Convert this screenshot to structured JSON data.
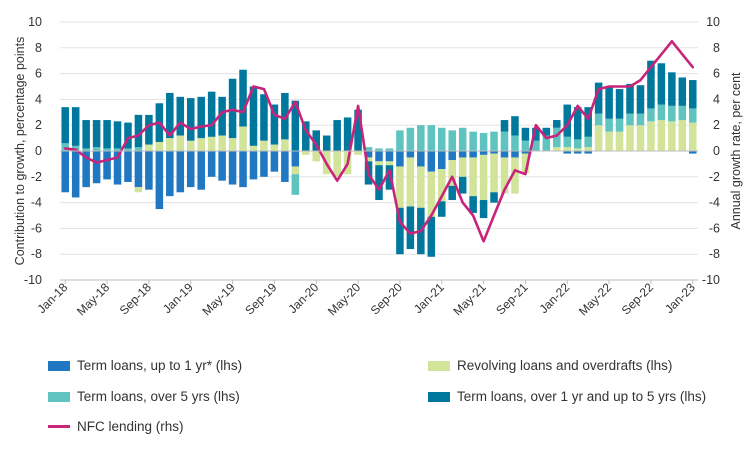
{
  "chart_data": {
    "type": "bar",
    "ylabel": "Contribution to growth, percentage points",
    "y2label": "Annual growth rate, per cent",
    "ylim": [
      -10,
      10
    ],
    "y2lim": [
      -10,
      10
    ],
    "yticks": [
      -10,
      -8,
      -6,
      -4,
      -2,
      0,
      2,
      4,
      6,
      8,
      10
    ],
    "x_tick_labels": [
      "Jan-18",
      "May-18",
      "Sep-18",
      "Jan-19",
      "May-19",
      "Sep-19",
      "Jan-20",
      "May-20",
      "Sep-20",
      "Jan-21",
      "May-21",
      "Sep-21",
      "Jan-22",
      "May-22",
      "Sep-22",
      "Jan-23"
    ],
    "categories": [
      "Jan-18",
      "Feb-18",
      "Mar-18",
      "Apr-18",
      "May-18",
      "Jun-18",
      "Jul-18",
      "Aug-18",
      "Sep-18",
      "Oct-18",
      "Nov-18",
      "Dec-18",
      "Jan-19",
      "Feb-19",
      "Mar-19",
      "Apr-19",
      "May-19",
      "Jun-19",
      "Jul-19",
      "Aug-19",
      "Sep-19",
      "Oct-19",
      "Nov-19",
      "Dec-19",
      "Jan-20",
      "Feb-20",
      "Mar-20",
      "Apr-20",
      "May-20",
      "Jun-20",
      "Jul-20",
      "Aug-20",
      "Sep-20",
      "Oct-20",
      "Nov-20",
      "Dec-20",
      "Jan-21",
      "Feb-21",
      "Mar-21",
      "Apr-21",
      "May-21",
      "Jun-21",
      "Jul-21",
      "Aug-21",
      "Sep-21",
      "Oct-21",
      "Nov-21",
      "Dec-21",
      "Jan-22",
      "Feb-22",
      "Mar-22",
      "Apr-22",
      "May-22",
      "Jun-22",
      "Jul-22",
      "Aug-22",
      "Sep-22",
      "Oct-22",
      "Nov-22",
      "Dec-22",
      "Jan-23"
    ],
    "legend_position": "bottom",
    "series": [
      {
        "name": "Term loans, up to 1 yr* (lhs)",
        "kind": "bar",
        "color": "#1f78c1",
        "values": [
          -3.2,
          -3.6,
          -2.8,
          -2.5,
          -2.2,
          -2.6,
          -2.4,
          -2.8,
          -3.0,
          -4.5,
          -3.5,
          -3.2,
          -2.8,
          -3.0,
          -2.0,
          -2.3,
          -2.6,
          -2.8,
          -2.2,
          -2.0,
          -1.6,
          -2.4,
          -1.2,
          0,
          0,
          0,
          0,
          0,
          0,
          -0.5,
          -0.8,
          -0.8,
          -1.2,
          -0.5,
          -1.2,
          -1.6,
          -1.4,
          -0.7,
          -0.5,
          -0.5,
          -0.3,
          -0.2,
          -0.5,
          -0.5,
          -0.2,
          0,
          0,
          0,
          -0.2,
          -0.2,
          -0.2,
          0,
          0,
          0,
          0,
          0,
          0,
          0,
          0,
          0,
          -0.2
        ]
      },
      {
        "name": "Revolving loans and overdrafts (lhs)",
        "kind": "bar",
        "color": "#d2e39a",
        "values": [
          0,
          0,
          0,
          0,
          0,
          0,
          0,
          -0.4,
          0.5,
          0.7,
          1.0,
          1.2,
          0.8,
          1.0,
          1.1,
          1.2,
          1.0,
          1.9,
          0.4,
          0.8,
          0.5,
          0.9,
          -0.6,
          -0.3,
          -0.8,
          -1.8,
          -2.0,
          -1.8,
          -0.3,
          -0.3,
          -0.3,
          -0.3,
          -3.2,
          -3.8,
          -3.2,
          -3.5,
          -2.5,
          -2.0,
          -1.5,
          -3.0,
          -3.5,
          -3.0,
          -2.8,
          -2.8,
          -1.5,
          0,
          0,
          0.3,
          0.3,
          0.2,
          0.3,
          2.0,
          1.5,
          1.5,
          2.0,
          2.0,
          2.3,
          2.4,
          2.3,
          2.4,
          2.2
        ]
      },
      {
        "name": "Term loans, over 5 yrs (lhs)",
        "kind": "bar",
        "color": "#5fc4c0",
        "values": [
          0.6,
          0.4,
          0.2,
          0.3,
          0.2,
          0.2,
          0.2,
          0.3,
          0,
          0,
          0,
          0,
          0,
          0,
          0,
          0,
          0,
          0,
          0,
          0,
          0,
          0,
          -1.6,
          0,
          0,
          0,
          0,
          0,
          0,
          0.3,
          0.2,
          0.2,
          1.6,
          1.8,
          2.0,
          2.0,
          1.8,
          1.6,
          1.8,
          1.5,
          1.4,
          1.5,
          1.5,
          1.2,
          0.8,
          0.8,
          1.2,
          1.5,
          0.8,
          0.7,
          0.8,
          0.9,
          1.0,
          1.0,
          0.9,
          0.9,
          1.0,
          1.2,
          1.2,
          1.1,
          1.1
        ]
      },
      {
        "name": "Term loans, over 1 yr and up to 5 yrs (lhs)",
        "kind": "bar",
        "color": "#00789e",
        "values": [
          2.8,
          3.0,
          2.2,
          2.1,
          2.2,
          2.1,
          2.0,
          2.5,
          2.3,
          3.0,
          3.5,
          3.0,
          3.3,
          3.2,
          3.5,
          3.0,
          4.6,
          4.4,
          4.6,
          3.6,
          3.1,
          3.6,
          3.9,
          2.3,
          1.6,
          1.2,
          2.4,
          2.6,
          3.2,
          -1.8,
          -2.7,
          -1.9,
          -3.6,
          -3.3,
          -3.6,
          -3.1,
          -1.2,
          -1.1,
          -1.3,
          -1.3,
          -1.4,
          -0.8,
          0.9,
          1.5,
          1.0,
          1.0,
          0.6,
          0.6,
          2.5,
          2.5,
          2.3,
          2.4,
          2.5,
          2.3,
          2.3,
          2.2,
          3.7,
          3.2,
          2.6,
          2.2,
          2.2
        ]
      },
      {
        "name": "NFC lending (rhs)",
        "kind": "line",
        "color": "#c8247a",
        "values": [
          0.2,
          0.1,
          -0.5,
          -0.9,
          -0.7,
          -0.5,
          1.0,
          1.2,
          2.0,
          2.2,
          1.2,
          2.2,
          1.7,
          1.9,
          2.0,
          3.0,
          3.2,
          3.0,
          5.0,
          4.8,
          2.8,
          2.5,
          3.8,
          1.6,
          0.5,
          -1.0,
          -2.3,
          -1.0,
          3.5,
          -1.8,
          -3.0,
          -1.5,
          -5.5,
          -6.4,
          -6.2,
          -5.0,
          -3.5,
          -2.0,
          -4.0,
          -5.0,
          -7.0,
          -5.0,
          -3.0,
          -1.5,
          -1.8,
          2.0,
          1.0,
          1.2,
          2.0,
          3.5,
          2.5,
          4.8,
          5.0,
          5.0,
          5.0,
          5.5,
          6.5,
          7.5,
          8.5,
          7.5,
          6.5
        ]
      }
    ]
  },
  "legend": {
    "item1": "Term loans, up to 1 yr* (lhs)",
    "item2": "Revolving loans and overdrafts (lhs)",
    "item3": "Term loans, over 5 yrs (lhs)",
    "item4": "Term loans, over 1 yr and up to 5 yrs (lhs)",
    "item5": "NFC lending (rhs)"
  }
}
